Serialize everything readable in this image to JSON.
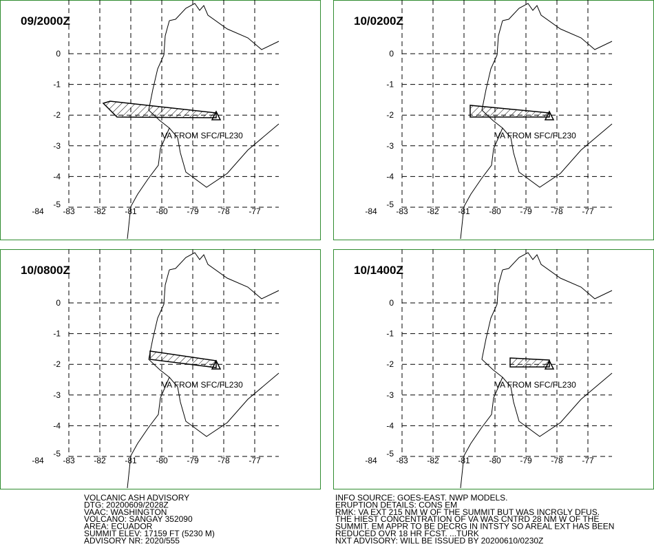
{
  "panels": [
    {
      "time": "09/2000Z",
      "label": "VA FROM SFC/FL230"
    },
    {
      "time": "10/0200Z",
      "label": "VA FROM SFC/FL230"
    },
    {
      "time": "10/0800Z",
      "label": "VA FROM SFC/FL230"
    },
    {
      "time": "10/1400Z",
      "label": "VA FROM SFC/FL230"
    }
  ],
  "lat_labels": [
    "0",
    "-1",
    "-2",
    "-3",
    "-4",
    "-5"
  ],
  "lon_labels": [
    "-84",
    "-83",
    "-82",
    "-81",
    "-80",
    "-79",
    "-78",
    "-77"
  ],
  "advisory": {
    "left": [
      "VOLCANIC ASH ADVISORY",
      "DTG: 20200609/2028Z",
      "VAAC: WASHINGTON",
      "VOLCANO: SANGAY 352090",
      "AREA: ECUADOR",
      "SUMMIT ELEV: 17159 FT (5230 M)",
      "ADVISORY NR: 2020/555"
    ],
    "right": [
      "INFO SOURCE: GOES-EAST. NWP MODELS.",
      "ERUPTION DETAILS: CONS EM",
      "RMK: VA EXT 215 NM W OF THE SUMMIT BUT WAS INCRGLY DFUS.",
      "THE HIEST CONCENTRATION OF VA WAS CNTRD 28 NM W OF THE",
      "SUMMIT. EM APPR TO BE DECRG IN INTSTY SO AREAL EXT HAS BEEN",
      "REDUCED OVR 18 HR FCST. ...TURK",
      "NXT ADVISORY: WILL BE ISSUED BY 20200610/0230Z"
    ]
  }
}
